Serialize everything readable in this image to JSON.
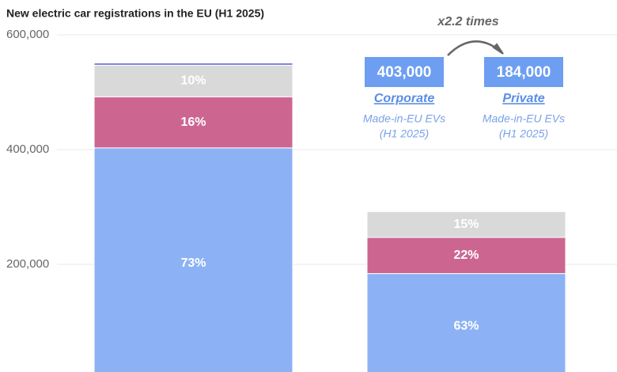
{
  "chart_data": {
    "type": "stacked-bar",
    "title": "New electric car registrations in the EU (H1 2025)",
    "categories": [
      "Corporate",
      "Private"
    ],
    "series": [
      {
        "color": "#8cb2f5",
        "values": [
          403000,
          184000
        ],
        "share_labels": [
          "73%",
          "63%"
        ]
      },
      {
        "color": "#cc6690",
        "values": [
          89000,
          63000
        ],
        "share_labels": [
          "16%",
          "22%"
        ]
      },
      {
        "color": "#d9d9d9",
        "values": [
          55000,
          45000
        ],
        "share_labels": [
          "10%",
          "15%"
        ]
      },
      {
        "color": "#7b7be0",
        "values": [
          4000,
          null
        ],
        "share_labels": [
          null,
          null
        ]
      }
    ],
    "ylim": [
      0,
      600000
    ],
    "yticks": [
      {
        "value": 200000,
        "label": "200,000"
      },
      {
        "value": 400000,
        "label": "400,000"
      },
      {
        "value": 600000,
        "label": "600,000"
      }
    ],
    "grid": true,
    "callouts": [
      {
        "value": 403000,
        "label": "403,000",
        "note": [
          "Made-in-EU EVs",
          "(H1 2025)"
        ]
      },
      {
        "value": 184000,
        "label": "184,000",
        "note": [
          "Made-in-EU EVs",
          "(H1 2025)"
        ]
      }
    ],
    "ratio_label": "x2.2 times"
  }
}
